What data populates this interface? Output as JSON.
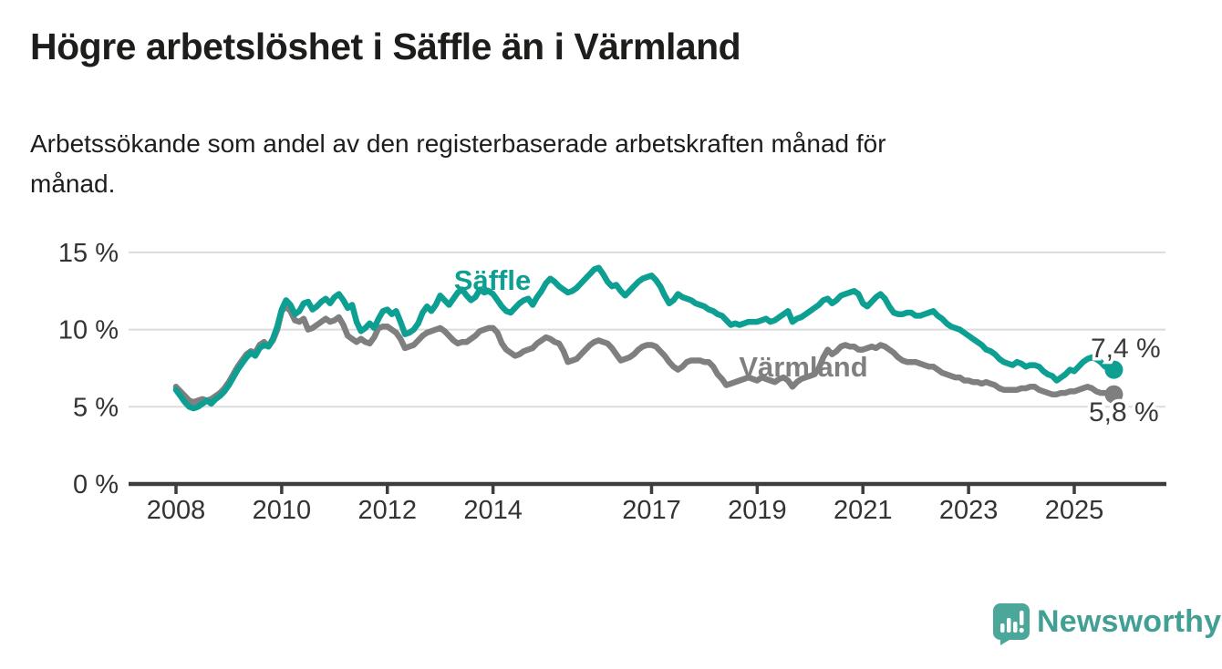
{
  "header": {
    "title": "Högre arbetslöshet i Säffle än i Värmland",
    "subtitle_line1": "Arbetssökande som andel av den registerbaserade arbetskraften månad för",
    "subtitle_line2": "månad."
  },
  "chart_data": {
    "type": "line",
    "frequency": "monthly",
    "x_start": "2008-01",
    "x_end": "2025-10",
    "grid": true,
    "ylim": [
      0,
      15
    ],
    "y_ticks": [
      {
        "value": 15,
        "label": "15 %"
      },
      {
        "value": 10,
        "label": "10 %"
      },
      {
        "value": 5,
        "label": "5 %"
      },
      {
        "value": 0,
        "label": "0 %"
      }
    ],
    "x_ticks": [
      {
        "year": 2008,
        "label": "2008"
      },
      {
        "year": 2010,
        "label": "2010"
      },
      {
        "year": 2012,
        "label": "2012"
      },
      {
        "year": 2014,
        "label": "2014"
      },
      {
        "year": 2017,
        "label": "2017"
      },
      {
        "year": 2019,
        "label": "2019"
      },
      {
        "year": 2021,
        "label": "2021"
      },
      {
        "year": 2023,
        "label": "2023"
      },
      {
        "year": 2025,
        "label": "2025"
      }
    ],
    "series": [
      {
        "name": "Värmland",
        "color": "#7f7f7f",
        "end_label": "5,8 %",
        "end_value": 5.8,
        "values": [
          6.3,
          6.0,
          5.7,
          5.4,
          5.3,
          5.4,
          5.5,
          5.4,
          5.5,
          5.7,
          5.9,
          6.2,
          6.6,
          7.1,
          7.6,
          8.0,
          8.4,
          8.6,
          8.5,
          9.0,
          9.2,
          8.9,
          9.3,
          10.0,
          11.2,
          11.5,
          11.2,
          10.6,
          10.5,
          10.7,
          10.0,
          10.1,
          10.3,
          10.5,
          10.7,
          10.5,
          10.6,
          10.8,
          10.3,
          9.6,
          9.4,
          9.2,
          9.4,
          9.2,
          9.1,
          9.5,
          10.1,
          10.2,
          10.2,
          10.0,
          9.8,
          9.4,
          8.8,
          8.9,
          9.0,
          9.3,
          9.6,
          9.8,
          9.9,
          10.0,
          10.1,
          9.9,
          9.6,
          9.3,
          9.1,
          9.2,
          9.2,
          9.4,
          9.6,
          9.9,
          10.0,
          10.1,
          10.1,
          9.8,
          9.1,
          8.7,
          8.5,
          8.3,
          8.4,
          8.6,
          8.7,
          8.8,
          9.1,
          9.3,
          9.5,
          9.4,
          9.2,
          9.1,
          8.6,
          7.9,
          8.0,
          8.1,
          8.4,
          8.7,
          9.0,
          9.2,
          9.3,
          9.2,
          9.1,
          8.8,
          8.4,
          8.0,
          8.1,
          8.2,
          8.4,
          8.7,
          8.9,
          9.0,
          9.0,
          8.9,
          8.6,
          8.3,
          7.9,
          7.6,
          7.4,
          7.6,
          7.9,
          8.0,
          8.0,
          8.0,
          7.9,
          7.9,
          7.6,
          7.1,
          6.8,
          6.4,
          6.5,
          6.6,
          6.7,
          6.8,
          6.9,
          6.8,
          6.7,
          6.9,
          6.8,
          6.7,
          6.6,
          6.8,
          6.9,
          6.7,
          6.3,
          6.6,
          6.8,
          6.9,
          7.0,
          7.1,
          7.5,
          8.2,
          8.7,
          8.4,
          8.6,
          8.9,
          9.0,
          8.9,
          8.9,
          8.7,
          8.7,
          8.8,
          8.9,
          8.8,
          9.0,
          8.9,
          8.7,
          8.5,
          8.2,
          8.0,
          7.9,
          7.9,
          7.9,
          7.8,
          7.7,
          7.6,
          7.6,
          7.4,
          7.2,
          7.1,
          7.0,
          6.9,
          6.9,
          6.7,
          6.7,
          6.6,
          6.6,
          6.5,
          6.6,
          6.5,
          6.4,
          6.2,
          6.1,
          6.1,
          6.1,
          6.1,
          6.2,
          6.2,
          6.3,
          6.3,
          6.1,
          6.0,
          5.9,
          5.8,
          5.8,
          5.9,
          5.9,
          6.0,
          6.0,
          6.1,
          6.2,
          6.3,
          6.2,
          6.0,
          5.9,
          5.9,
          5.8,
          5.8
        ]
      },
      {
        "name": "Säffle",
        "color": "#0e9f93",
        "end_label": "7,4 %",
        "end_value": 7.4,
        "values": [
          6.1,
          5.7,
          5.3,
          5.0,
          4.9,
          5.0,
          5.2,
          5.4,
          5.2,
          5.5,
          5.7,
          6.0,
          6.4,
          6.9,
          7.4,
          7.8,
          8.2,
          8.5,
          8.3,
          8.8,
          9.0,
          8.9,
          9.4,
          10.2,
          11.3,
          11.9,
          11.6,
          11.0,
          11.2,
          11.7,
          11.8,
          11.3,
          11.5,
          11.8,
          12.0,
          11.7,
          12.1,
          12.3,
          11.9,
          11.4,
          11.6,
          10.5,
          9.9,
          10.1,
          10.4,
          10.1,
          10.7,
          11.2,
          11.3,
          11.0,
          11.2,
          10.5,
          9.7,
          9.8,
          10.0,
          10.4,
          11.1,
          11.5,
          11.2,
          11.6,
          12.2,
          11.9,
          11.6,
          12.0,
          12.4,
          12.6,
          12.2,
          11.9,
          12.1,
          12.6,
          12.4,
          12.5,
          12.3,
          11.9,
          11.5,
          11.2,
          11.1,
          11.4,
          11.7,
          11.9,
          12.0,
          11.6,
          12.1,
          12.5,
          13.0,
          13.3,
          13.1,
          12.8,
          12.6,
          12.4,
          12.5,
          12.7,
          13.0,
          13.3,
          13.6,
          13.9,
          14.0,
          13.6,
          13.1,
          12.8,
          12.9,
          12.5,
          12.2,
          12.5,
          12.8,
          13.1,
          13.3,
          13.4,
          13.5,
          13.2,
          12.8,
          12.2,
          11.7,
          11.9,
          12.3,
          12.1,
          12.0,
          11.9,
          11.7,
          11.6,
          11.5,
          11.3,
          11.2,
          11.0,
          10.9,
          10.6,
          10.3,
          10.4,
          10.3,
          10.4,
          10.5,
          10.5,
          10.5,
          10.6,
          10.7,
          10.5,
          10.6,
          10.8,
          11.0,
          11.2,
          10.5,
          10.7,
          10.8,
          11.0,
          11.2,
          11.4,
          11.6,
          11.9,
          12.0,
          11.7,
          11.9,
          12.2,
          12.3,
          12.4,
          12.5,
          12.3,
          11.7,
          11.5,
          11.8,
          12.1,
          12.3,
          12.0,
          11.5,
          11.1,
          11.0,
          11.0,
          11.1,
          11.1,
          10.9,
          10.9,
          11.0,
          11.1,
          11.2,
          10.9,
          10.7,
          10.4,
          10.2,
          10.1,
          10.0,
          9.8,
          9.6,
          9.4,
          9.2,
          9.0,
          8.7,
          8.6,
          8.4,
          8.1,
          7.9,
          7.8,
          7.7,
          7.9,
          7.8,
          7.6,
          7.7,
          7.7,
          7.6,
          7.3,
          7.1,
          7.0,
          6.7,
          6.9,
          7.1,
          7.4,
          7.3,
          7.6,
          7.9,
          8.1,
          8.2,
          8.1,
          7.9,
          7.6,
          7.6,
          7.4
        ]
      }
    ],
    "colors": {
      "grid": "#dcdcdc",
      "axis": "#3d3d3d",
      "tick_text": "#333333",
      "annotation_text": "#3a3a3a"
    }
  },
  "logo": {
    "text": "Newsworthy",
    "color": "#41a093",
    "icon": "bar-chart-speech-bubble-icon"
  }
}
